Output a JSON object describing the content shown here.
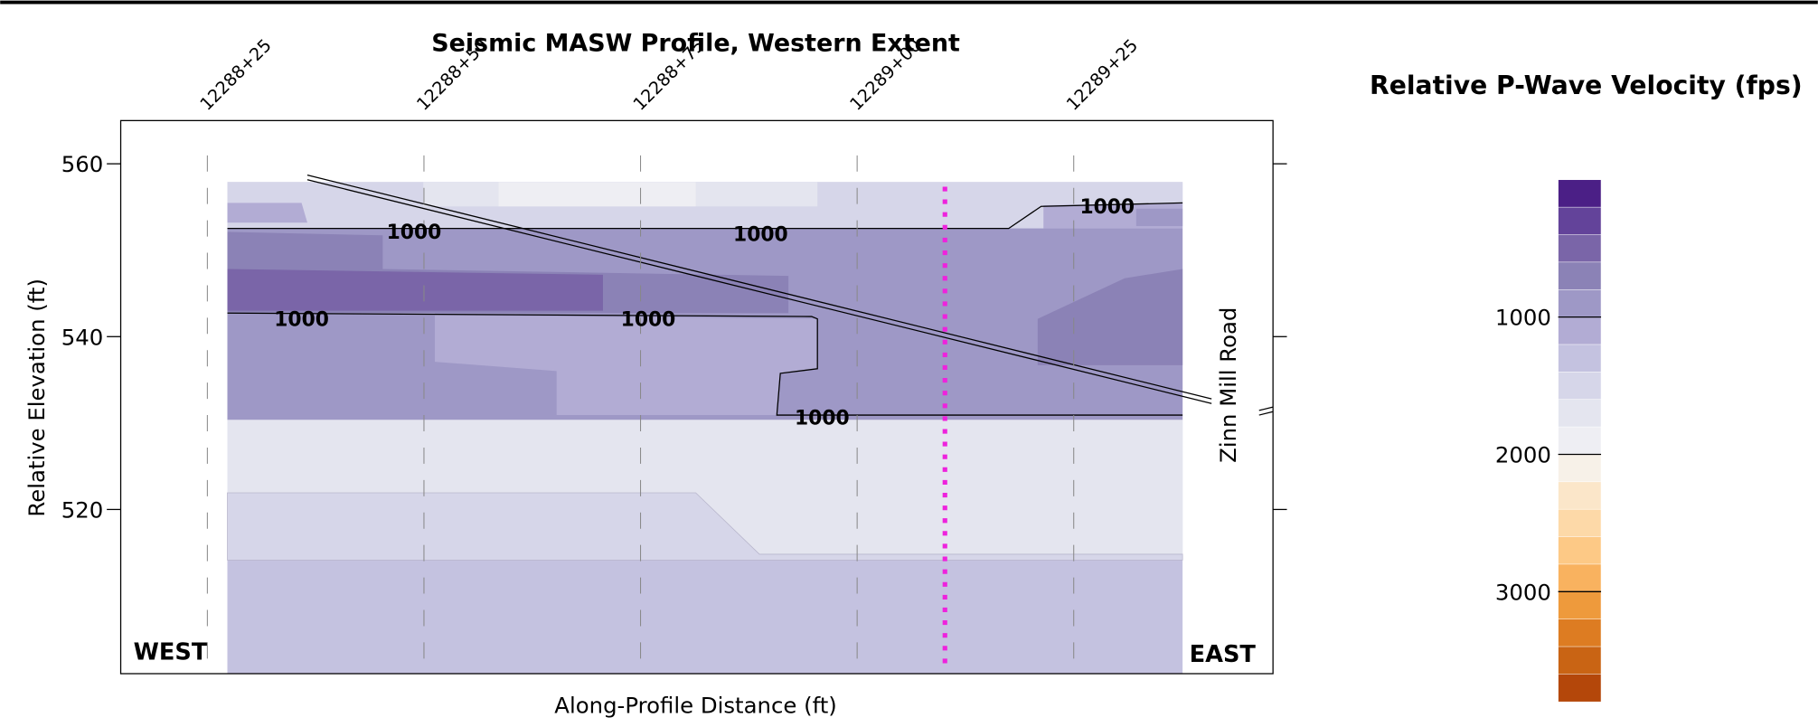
{
  "chart_data": {
    "type": "contour",
    "title": "Seismic MASW Profile, Western Extent",
    "xlabel": "Along-Profile Distance (ft)",
    "ylabel": "Relative Elevation (ft)",
    "xlim": [
      1228815,
      1228948
    ],
    "xticks": [
      {
        "value": 1228825,
        "label": "12288+25"
      },
      {
        "value": 1228850,
        "label": "12288+50"
      },
      {
        "value": 1228875,
        "label": "12288+75"
      },
      {
        "value": 1228900,
        "label": "12289+00"
      },
      {
        "value": 1228925,
        "label": "12289+25"
      }
    ],
    "ylim": [
      501,
      565
    ],
    "yticks": [
      520,
      540,
      560
    ],
    "contour_labels": [
      1000,
      1000,
      1000,
      1000,
      1000,
      1000
    ],
    "annotations": [
      "WEST",
      "EAST",
      "Zinn Mill Road"
    ],
    "colorbar": {
      "title": "Relative P-Wave Velocity (fps)",
      "lim": [
        0,
        3800
      ],
      "ticks": [
        1000,
        2000,
        3000
      ],
      "colors": [
        "#4b1f86",
        "#63439a",
        "#7a65a8",
        "#8b82b6",
        "#9e98c6",
        "#b2acd4",
        "#c4c2e0",
        "#d6d6e9",
        "#e4e5ef",
        "#eeeef3",
        "#f7f1e8",
        "#fbe6c9",
        "#fdd9a8",
        "#fdc986",
        "#f9b25f",
        "#ee9a3c",
        "#dd7c22",
        "#c96414",
        "#b4470a"
      ]
    }
  }
}
